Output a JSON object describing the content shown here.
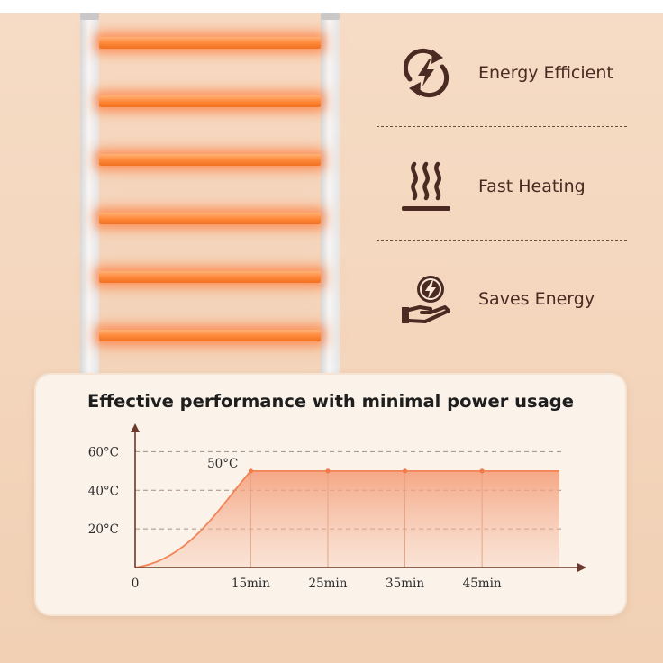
{
  "features": [
    {
      "label": "Energy Efficient",
      "icon": "energy-cycle-icon"
    },
    {
      "label": "Fast Heating",
      "icon": "heat-waves-icon"
    },
    {
      "label": "Saves Energy",
      "icon": "hand-energy-icon"
    }
  ],
  "colors": {
    "accent": "#ff8a3c",
    "icon": "#4a2a22",
    "curve": "#f28455"
  },
  "chart_data": {
    "type": "area",
    "title": "Effective performance with minimal power usage",
    "x_ticks": [
      "0",
      "15min",
      "25min",
      "35min",
      "45min"
    ],
    "x": [
      0,
      15,
      25,
      35,
      45
    ],
    "y": [
      0,
      50,
      50,
      50,
      50
    ],
    "y_ticks": [
      "20°C",
      "40°C",
      "60°C"
    ],
    "y_tick_values": [
      20,
      40,
      60
    ],
    "annotation": "50°C",
    "ylim": [
      0,
      70
    ],
    "xlim": [
      0,
      52
    ],
    "grid": "horizontal-dashed"
  }
}
